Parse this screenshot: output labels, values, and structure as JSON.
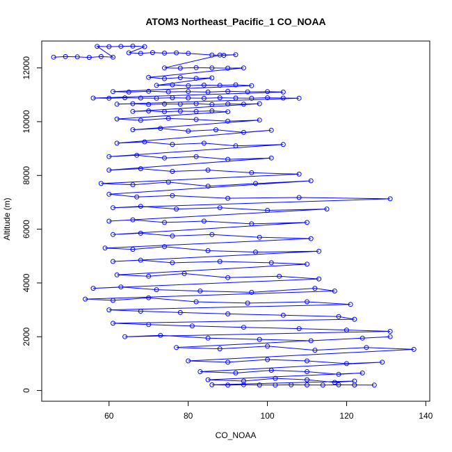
{
  "chart_data": {
    "type": "scatter",
    "title": "ATOM3 Northeast_Pacific_1 CO_NOAA",
    "xlabel": "CO_NOAA",
    "ylabel": "Altitude (m)",
    "xlim": [
      43,
      141
    ],
    "ylim": [
      -400,
      13000
    ],
    "xticks": [
      60,
      80,
      100,
      120,
      140
    ],
    "yticks": [
      0,
      2000,
      4000,
      6000,
      8000,
      10000,
      12000
    ],
    "grid": false,
    "legend": "none",
    "connected": true,
    "series": [
      {
        "color": "#0000ff",
        "marker": "open-circle",
        "points": [
          [
            46,
            12400
          ],
          [
            49,
            12420
          ],
          [
            52,
            12410
          ],
          [
            55,
            12390
          ],
          [
            58,
            12420
          ],
          [
            61,
            12400
          ],
          [
            57,
            12800
          ],
          [
            60,
            12790
          ],
          [
            63,
            12800
          ],
          [
            66,
            12810
          ],
          [
            69,
            12790
          ],
          [
            65,
            12560
          ],
          [
            68,
            12540
          ],
          [
            71,
            12570
          ],
          [
            74,
            12550
          ],
          [
            77,
            12560
          ],
          [
            80,
            12540
          ],
          [
            86,
            12480
          ],
          [
            89,
            12470
          ],
          [
            92,
            12490
          ],
          [
            88,
            12480
          ],
          [
            74,
            12000
          ],
          [
            78,
            11990
          ],
          [
            82,
            12010
          ],
          [
            86,
            12000
          ],
          [
            90,
            11990
          ],
          [
            94,
            12000
          ],
          [
            70,
            11650
          ],
          [
            74,
            11600
          ],
          [
            78,
            11640
          ],
          [
            82,
            11610
          ],
          [
            86,
            11630
          ],
          [
            72,
            11350
          ],
          [
            76,
            11370
          ],
          [
            80,
            11340
          ],
          [
            84,
            11360
          ],
          [
            88,
            11350
          ],
          [
            92,
            11370
          ],
          [
            96,
            11340
          ],
          [
            61,
            11120
          ],
          [
            65,
            11100
          ],
          [
            70,
            11130
          ],
          [
            75,
            11110
          ],
          [
            80,
            11120
          ],
          [
            85,
            11100
          ],
          [
            90,
            11130
          ],
          [
            95,
            11110
          ],
          [
            100,
            11120
          ],
          [
            104,
            11100
          ],
          [
            56,
            10880
          ],
          [
            60,
            10870
          ],
          [
            64,
            10890
          ],
          [
            68,
            10880
          ],
          [
            72,
            10870
          ],
          [
            76,
            10890
          ],
          [
            80,
            10880
          ],
          [
            84,
            10870
          ],
          [
            88,
            10890
          ],
          [
            92,
            10880
          ],
          [
            96,
            10870
          ],
          [
            100,
            10890
          ],
          [
            104,
            10880
          ],
          [
            108,
            10870
          ],
          [
            62,
            10650
          ],
          [
            66,
            10670
          ],
          [
            70,
            10640
          ],
          [
            74,
            10660
          ],
          [
            78,
            10650
          ],
          [
            82,
            10670
          ],
          [
            86,
            10640
          ],
          [
            90,
            10660
          ],
          [
            94,
            10650
          ],
          [
            98,
            10670
          ],
          [
            66,
            10380
          ],
          [
            70,
            10400
          ],
          [
            74,
            10370
          ],
          [
            78,
            10390
          ],
          [
            82,
            10380
          ],
          [
            86,
            10400
          ],
          [
            90,
            10370
          ],
          [
            62,
            10100
          ],
          [
            68,
            10050
          ],
          [
            75,
            10120
          ],
          [
            82,
            10080
          ],
          [
            90,
            10020
          ],
          [
            98,
            10060
          ],
          [
            66,
            9700
          ],
          [
            73,
            9750
          ],
          [
            80,
            9650
          ],
          [
            87,
            9700
          ],
          [
            94,
            9600
          ],
          [
            101,
            9680
          ],
          [
            62,
            9200
          ],
          [
            69,
            9250
          ],
          [
            76,
            9150
          ],
          [
            84,
            9200
          ],
          [
            92,
            9100
          ],
          [
            104,
            9150
          ],
          [
            60,
            8700
          ],
          [
            67,
            8750
          ],
          [
            74,
            8650
          ],
          [
            82,
            8700
          ],
          [
            90,
            8600
          ],
          [
            101,
            8650
          ],
          [
            60,
            8200
          ],
          [
            68,
            8250
          ],
          [
            76,
            8150
          ],
          [
            85,
            8200
          ],
          [
            96,
            8100
          ],
          [
            108,
            8050
          ],
          [
            58,
            7700
          ],
          [
            66,
            7650
          ],
          [
            75,
            7750
          ],
          [
            85,
            7600
          ],
          [
            97,
            7700
          ],
          [
            111,
            7800
          ],
          [
            60,
            7300
          ],
          [
            67,
            7200
          ],
          [
            76,
            7250
          ],
          [
            90,
            7150
          ],
          [
            108,
            7180
          ],
          [
            131,
            7130
          ],
          [
            61,
            6800
          ],
          [
            68,
            6850
          ],
          [
            77,
            6750
          ],
          [
            88,
            6800
          ],
          [
            100,
            6700
          ],
          [
            115,
            6750
          ],
          [
            60,
            6300
          ],
          [
            66,
            6350
          ],
          [
            74,
            6250
          ],
          [
            84,
            6300
          ],
          [
            96,
            6200
          ],
          [
            110,
            6250
          ],
          [
            61,
            5800
          ],
          [
            68,
            5850
          ],
          [
            76,
            5750
          ],
          [
            86,
            5800
          ],
          [
            98,
            5700
          ],
          [
            111,
            5650
          ],
          [
            59,
            5300
          ],
          [
            66,
            5250
          ],
          [
            74,
            5350
          ],
          [
            85,
            5200
          ],
          [
            97,
            5150
          ],
          [
            113,
            5180
          ],
          [
            61,
            4800
          ],
          [
            68,
            4850
          ],
          [
            76,
            4750
          ],
          [
            88,
            4800
          ],
          [
            101,
            4750
          ],
          [
            110,
            4700
          ],
          [
            62,
            4300
          ],
          [
            70,
            4250
          ],
          [
            79,
            4350
          ],
          [
            90,
            4200
          ],
          [
            103,
            4250
          ],
          [
            113,
            4150
          ],
          [
            56,
            3800
          ],
          [
            63,
            3850
          ],
          [
            72,
            3750
          ],
          [
            83,
            3700
          ],
          [
            96,
            3650
          ],
          [
            112,
            3800
          ],
          [
            117,
            3700
          ],
          [
            54,
            3400
          ],
          [
            61,
            3350
          ],
          [
            70,
            3450
          ],
          [
            82,
            3300
          ],
          [
            95,
            3250
          ],
          [
            110,
            3300
          ],
          [
            121,
            3200
          ],
          [
            60,
            3000
          ],
          [
            68,
            2950
          ],
          [
            78,
            2900
          ],
          [
            90,
            2850
          ],
          [
            104,
            2800
          ],
          [
            118,
            2750
          ],
          [
            122,
            2650
          ],
          [
            61,
            2500
          ],
          [
            70,
            2450
          ],
          [
            81,
            2400
          ],
          [
            94,
            2350
          ],
          [
            108,
            2300
          ],
          [
            120,
            2250
          ],
          [
            131,
            2200
          ],
          [
            64,
            2000
          ],
          [
            73,
            2050
          ],
          [
            85,
            1950
          ],
          [
            98,
            1900
          ],
          [
            111,
            1850
          ],
          [
            124,
            1950
          ],
          [
            131,
            2000
          ],
          [
            77,
            1600
          ],
          [
            88,
            1550
          ],
          [
            100,
            1650
          ],
          [
            112,
            1500
          ],
          [
            125,
            1600
          ],
          [
            137,
            1530
          ],
          [
            80,
            1100
          ],
          [
            90,
            1050
          ],
          [
            100,
            1150
          ],
          [
            110,
            1100
          ],
          [
            120,
            1000
          ],
          [
            129,
            1050
          ],
          [
            83,
            700
          ],
          [
            92,
            650
          ],
          [
            101,
            750
          ],
          [
            110,
            700
          ],
          [
            118,
            600
          ],
          [
            124,
            650
          ],
          [
            85,
            400
          ],
          [
            94,
            350
          ],
          [
            102,
            450
          ],
          [
            110,
            400
          ],
          [
            117,
            300
          ],
          [
            122,
            350
          ],
          [
            86,
            210
          ],
          [
            90,
            200
          ],
          [
            94,
            215
          ],
          [
            98,
            205
          ],
          [
            102,
            200
          ],
          [
            106,
            210
          ],
          [
            110,
            205
          ],
          [
            114,
            200
          ],
          [
            118,
            210
          ],
          [
            122,
            205
          ],
          [
            127,
            200
          ]
        ]
      }
    ]
  }
}
